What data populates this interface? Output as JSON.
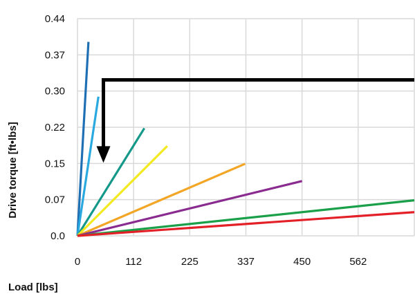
{
  "chart_data": {
    "type": "line",
    "xlabel": "Load [lbs]",
    "ylabel": "Drive torque [ft•lbs]",
    "x_tick_labels": [
      "0",
      "112",
      "225",
      "337",
      "450",
      "562"
    ],
    "y_tick_labels": [
      "0.0",
      "0.07",
      "0.15",
      "0.22",
      "0.30",
      "0.37",
      "0.44"
    ],
    "xlim": [
      0,
      675
    ],
    "ylim": [
      0,
      0.44
    ],
    "grid": true,
    "legend": "none",
    "series": [
      {
        "color": "#1f6fb4",
        "x": [
          0,
          22
        ],
        "y": [
          0,
          0.393
        ]
      },
      {
        "color": "#29a9df",
        "x": [
          0,
          42
        ],
        "y": [
          0,
          0.282
        ]
      },
      {
        "color": "#14988a",
        "x": [
          0,
          134
        ],
        "y": [
          0,
          0.218
        ]
      },
      {
        "color": "#f2ea1f",
        "x": [
          0,
          180
        ],
        "y": [
          0,
          0.182
        ]
      },
      {
        "color": "#f3a626",
        "x": [
          0,
          336
        ],
        "y": [
          0,
          0.146
        ]
      },
      {
        "color": "#8a2b90",
        "x": [
          0,
          450
        ],
        "y": [
          0,
          0.111
        ]
      },
      {
        "color": "#1aa049",
        "x": [
          0,
          675
        ],
        "y": [
          0,
          0.072
        ]
      },
      {
        "color": "#e32027",
        "x": [
          0,
          675
        ],
        "y": [
          0,
          0.048
        ]
      }
    ],
    "arrow": {
      "x_start": 675,
      "y_start": 0.316,
      "x_corner": 52,
      "y_end": 0.148
    }
  }
}
